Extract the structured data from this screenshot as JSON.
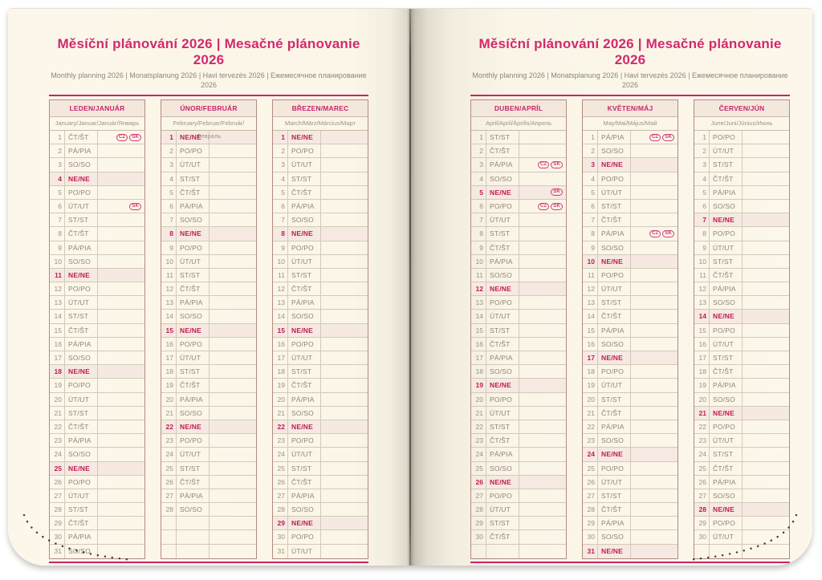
{
  "heading": {
    "title": "Měsíční plánování 2026 | Mesačné plánovanie 2026",
    "subtitle": "Monthly planning 2026 | Monatsplanung 2026 | Havi tervezés 2026 | Ежемесячное планирование 2026"
  },
  "colors": {
    "accent_pink": "#d12a6e",
    "rule_pink": "#c7256a",
    "sunday_red": "#bf1d50",
    "sunday_row_bg": "#f6e9e2",
    "month_header_bg": "#f4e8dc",
    "paper": "#fbf6e8",
    "grid_line": "#d2cab9",
    "table_border": "#b08c7f",
    "muted_text": "#8e8577"
  },
  "pages": [
    {
      "side": "left",
      "months": [
        0,
        1,
        2
      ]
    },
    {
      "side": "right",
      "months": [
        3,
        4,
        5
      ]
    }
  ],
  "months": [
    {
      "id": "leden-januar",
      "header": "LEDEN/JANUÁR",
      "subheader": "January/Januar/Január/Январь",
      "empty_rows": 0,
      "days": [
        {
          "n": 1,
          "day": "ČT/ŠT",
          "badges": [
            "CZ",
            "SK"
          ]
        },
        {
          "n": 2,
          "day": "PÁ/PIA"
        },
        {
          "n": 3,
          "day": "SO/SO"
        },
        {
          "n": 4,
          "day": "NE/NE",
          "sun": true
        },
        {
          "n": 5,
          "day": "PO/PO"
        },
        {
          "n": 6,
          "day": "ÚT/UT",
          "badges": [
            "SK"
          ]
        },
        {
          "n": 7,
          "day": "ST/ST"
        },
        {
          "n": 8,
          "day": "ČT/ŠT"
        },
        {
          "n": 9,
          "day": "PÁ/PIA"
        },
        {
          "n": 10,
          "day": "SO/SO"
        },
        {
          "n": 11,
          "day": "NE/NE",
          "sun": true
        },
        {
          "n": 12,
          "day": "PO/PO"
        },
        {
          "n": 13,
          "day": "ÚT/UT"
        },
        {
          "n": 14,
          "day": "ST/ST"
        },
        {
          "n": 15,
          "day": "ČT/ŠT"
        },
        {
          "n": 16,
          "day": "PÁ/PIA"
        },
        {
          "n": 17,
          "day": "SO/SO"
        },
        {
          "n": 18,
          "day": "NE/NE",
          "sun": true
        },
        {
          "n": 19,
          "day": "PO/PO"
        },
        {
          "n": 20,
          "day": "ÚT/UT"
        },
        {
          "n": 21,
          "day": "ST/ST"
        },
        {
          "n": 22,
          "day": "ČT/ŠT"
        },
        {
          "n": 23,
          "day": "PÁ/PIA"
        },
        {
          "n": 24,
          "day": "SO/SO"
        },
        {
          "n": 25,
          "day": "NE/NE",
          "sun": true
        },
        {
          "n": 26,
          "day": "PO/PO"
        },
        {
          "n": 27,
          "day": "ÚT/UT"
        },
        {
          "n": 28,
          "day": "ST/ST"
        },
        {
          "n": 29,
          "day": "ČT/ŠT"
        },
        {
          "n": 30,
          "day": "PÁ/PIA"
        },
        {
          "n": 31,
          "day": "SO/SO"
        }
      ]
    },
    {
      "id": "unor-februar",
      "header": "ÚNOR/FEBRUÁR",
      "subheader": "February/Februar/Február/Февраль",
      "empty_rows": 3,
      "days": [
        {
          "n": 1,
          "day": "NE/NE",
          "sun": true
        },
        {
          "n": 2,
          "day": "PO/PO"
        },
        {
          "n": 3,
          "day": "ÚT/UT"
        },
        {
          "n": 4,
          "day": "ST/ST"
        },
        {
          "n": 5,
          "day": "ČT/ŠT"
        },
        {
          "n": 6,
          "day": "PÁ/PIA"
        },
        {
          "n": 7,
          "day": "SO/SO"
        },
        {
          "n": 8,
          "day": "NE/NE",
          "sun": true
        },
        {
          "n": 9,
          "day": "PO/PO"
        },
        {
          "n": 10,
          "day": "ÚT/UT"
        },
        {
          "n": 11,
          "day": "ST/ST"
        },
        {
          "n": 12,
          "day": "ČT/ŠT"
        },
        {
          "n": 13,
          "day": "PÁ/PIA"
        },
        {
          "n": 14,
          "day": "SO/SO"
        },
        {
          "n": 15,
          "day": "NE/NE",
          "sun": true
        },
        {
          "n": 16,
          "day": "PO/PO"
        },
        {
          "n": 17,
          "day": "ÚT/UT"
        },
        {
          "n": 18,
          "day": "ST/ST"
        },
        {
          "n": 19,
          "day": "ČT/ŠT"
        },
        {
          "n": 20,
          "day": "PÁ/PIA"
        },
        {
          "n": 21,
          "day": "SO/SO"
        },
        {
          "n": 22,
          "day": "NE/NE",
          "sun": true
        },
        {
          "n": 23,
          "day": "PO/PO"
        },
        {
          "n": 24,
          "day": "ÚT/UT"
        },
        {
          "n": 25,
          "day": "ST/ST"
        },
        {
          "n": 26,
          "day": "ČT/ŠT"
        },
        {
          "n": 27,
          "day": "PÁ/PIA"
        },
        {
          "n": 28,
          "day": "SO/SO"
        }
      ]
    },
    {
      "id": "brezen-marec",
      "header": "BŘEZEN/MAREC",
      "subheader": "March/März/Március/Март",
      "empty_rows": 0,
      "days": [
        {
          "n": 1,
          "day": "NE/NE",
          "sun": true
        },
        {
          "n": 2,
          "day": "PO/PO"
        },
        {
          "n": 3,
          "day": "ÚT/UT"
        },
        {
          "n": 4,
          "day": "ST/ST"
        },
        {
          "n": 5,
          "day": "ČT/ŠT"
        },
        {
          "n": 6,
          "day": "PÁ/PIA"
        },
        {
          "n": 7,
          "day": "SO/SO"
        },
        {
          "n": 8,
          "day": "NE/NE",
          "sun": true
        },
        {
          "n": 9,
          "day": "PO/PO"
        },
        {
          "n": 10,
          "day": "ÚT/UT"
        },
        {
          "n": 11,
          "day": "ST/ST"
        },
        {
          "n": 12,
          "day": "ČT/ŠT"
        },
        {
          "n": 13,
          "day": "PÁ/PIA"
        },
        {
          "n": 14,
          "day": "SO/SO"
        },
        {
          "n": 15,
          "day": "NE/NE",
          "sun": true
        },
        {
          "n": 16,
          "day": "PO/PO"
        },
        {
          "n": 17,
          "day": "ÚT/UT"
        },
        {
          "n": 18,
          "day": "ST/ST"
        },
        {
          "n": 19,
          "day": "ČT/ŠT"
        },
        {
          "n": 20,
          "day": "PÁ/PIA"
        },
        {
          "n": 21,
          "day": "SO/SO"
        },
        {
          "n": 22,
          "day": "NE/NE",
          "sun": true
        },
        {
          "n": 23,
          "day": "PO/PO"
        },
        {
          "n": 24,
          "day": "ÚT/UT"
        },
        {
          "n": 25,
          "day": "ST/ST"
        },
        {
          "n": 26,
          "day": "ČT/ŠT"
        },
        {
          "n": 27,
          "day": "PÁ/PIA"
        },
        {
          "n": 28,
          "day": "SO/SO"
        },
        {
          "n": 29,
          "day": "NE/NE",
          "sun": true
        },
        {
          "n": 30,
          "day": "PO/PO"
        },
        {
          "n": 31,
          "day": "ÚT/UT"
        }
      ]
    },
    {
      "id": "duben-april",
      "header": "DUBEN/APRÍL",
      "subheader": "April/April/Április/Апрель",
      "empty_rows": 1,
      "days": [
        {
          "n": 1,
          "day": "ST/ST"
        },
        {
          "n": 2,
          "day": "ČT/ŠT"
        },
        {
          "n": 3,
          "day": "PÁ/PIA",
          "badges": [
            "CZ",
            "SK"
          ]
        },
        {
          "n": 4,
          "day": "SO/SO"
        },
        {
          "n": 5,
          "day": "NE/NE",
          "sun": true,
          "badges": [
            "SK"
          ]
        },
        {
          "n": 6,
          "day": "PO/PO",
          "badges": [
            "CZ",
            "SK"
          ]
        },
        {
          "n": 7,
          "day": "ÚT/UT"
        },
        {
          "n": 8,
          "day": "ST/ST"
        },
        {
          "n": 9,
          "day": "ČT/ŠT"
        },
        {
          "n": 10,
          "day": "PÁ/PIA"
        },
        {
          "n": 11,
          "day": "SO/SO"
        },
        {
          "n": 12,
          "day": "NE/NE",
          "sun": true
        },
        {
          "n": 13,
          "day": "PO/PO"
        },
        {
          "n": 14,
          "day": "ÚT/UT"
        },
        {
          "n": 15,
          "day": "ST/ST"
        },
        {
          "n": 16,
          "day": "ČT/ŠT"
        },
        {
          "n": 17,
          "day": "PÁ/PIA"
        },
        {
          "n": 18,
          "day": "SO/SO"
        },
        {
          "n": 19,
          "day": "NE/NE",
          "sun": true
        },
        {
          "n": 20,
          "day": "PO/PO"
        },
        {
          "n": 21,
          "day": "ÚT/UT"
        },
        {
          "n": 22,
          "day": "ST/ST"
        },
        {
          "n": 23,
          "day": "ČT/ŠT"
        },
        {
          "n": 24,
          "day": "PÁ/PIA"
        },
        {
          "n": 25,
          "day": "SO/SO"
        },
        {
          "n": 26,
          "day": "NE/NE",
          "sun": true
        },
        {
          "n": 27,
          "day": "PO/PO"
        },
        {
          "n": 28,
          "day": "ÚT/UT"
        },
        {
          "n": 29,
          "day": "ST/ST"
        },
        {
          "n": 30,
          "day": "ČT/ŠT"
        }
      ]
    },
    {
      "id": "kveten-maj",
      "header": "KVĚTEN/MÁJ",
      "subheader": "May/Mai/Május/Май",
      "empty_rows": 0,
      "days": [
        {
          "n": 1,
          "day": "PÁ/PIA",
          "badges": [
            "CZ",
            "SK"
          ]
        },
        {
          "n": 2,
          "day": "SO/SO"
        },
        {
          "n": 3,
          "day": "NE/NE",
          "sun": true
        },
        {
          "n": 4,
          "day": "PO/PO"
        },
        {
          "n": 5,
          "day": "ÚT/UT"
        },
        {
          "n": 6,
          "day": "ST/ST"
        },
        {
          "n": 7,
          "day": "ČT/ŠT"
        },
        {
          "n": 8,
          "day": "PÁ/PIA",
          "badges": [
            "CZ",
            "SK"
          ]
        },
        {
          "n": 9,
          "day": "SO/SO"
        },
        {
          "n": 10,
          "day": "NE/NE",
          "sun": true
        },
        {
          "n": 11,
          "day": "PO/PO"
        },
        {
          "n": 12,
          "day": "ÚT/UT"
        },
        {
          "n": 13,
          "day": "ST/ST"
        },
        {
          "n": 14,
          "day": "ČT/ŠT"
        },
        {
          "n": 15,
          "day": "PÁ/PIA"
        },
        {
          "n": 16,
          "day": "SO/SO"
        },
        {
          "n": 17,
          "day": "NE/NE",
          "sun": true
        },
        {
          "n": 18,
          "day": "PO/PO"
        },
        {
          "n": 19,
          "day": "ÚT/UT"
        },
        {
          "n": 20,
          "day": "ST/ST"
        },
        {
          "n": 21,
          "day": "ČT/ŠT"
        },
        {
          "n": 22,
          "day": "PÁ/PIA"
        },
        {
          "n": 23,
          "day": "SO/SO"
        },
        {
          "n": 24,
          "day": "NE/NE",
          "sun": true
        },
        {
          "n": 25,
          "day": "PO/PO"
        },
        {
          "n": 26,
          "day": "ÚT/UT"
        },
        {
          "n": 27,
          "day": "ST/ST"
        },
        {
          "n": 28,
          "day": "ČT/ŠT"
        },
        {
          "n": 29,
          "day": "PÁ/PIA"
        },
        {
          "n": 30,
          "day": "SO/SO"
        },
        {
          "n": 31,
          "day": "NE/NE",
          "sun": true
        }
      ]
    },
    {
      "id": "cerven-jun",
      "header": "ČERVEN/JÚN",
      "subheader": "June/Juni/Június/Июнь",
      "empty_rows": 1,
      "days": [
        {
          "n": 1,
          "day": "PO/PO"
        },
        {
          "n": 2,
          "day": "ÚT/UT"
        },
        {
          "n": 3,
          "day": "ST/ST"
        },
        {
          "n": 4,
          "day": "ČT/ŠT"
        },
        {
          "n": 5,
          "day": "PÁ/PIA"
        },
        {
          "n": 6,
          "day": "SO/SO"
        },
        {
          "n": 7,
          "day": "NE/NE",
          "sun": true
        },
        {
          "n": 8,
          "day": "PO/PO"
        },
        {
          "n": 9,
          "day": "ÚT/UT"
        },
        {
          "n": 10,
          "day": "ST/ST"
        },
        {
          "n": 11,
          "day": "ČT/ŠT"
        },
        {
          "n": 12,
          "day": "PÁ/PIA"
        },
        {
          "n": 13,
          "day": "SO/SO"
        },
        {
          "n": 14,
          "day": "NE/NE",
          "sun": true
        },
        {
          "n": 15,
          "day": "PO/PO"
        },
        {
          "n": 16,
          "day": "ÚT/UT"
        },
        {
          "n": 17,
          "day": "ST/ST"
        },
        {
          "n": 18,
          "day": "ČT/ŠT"
        },
        {
          "n": 19,
          "day": "PÁ/PIA"
        },
        {
          "n": 20,
          "day": "SO/SO"
        },
        {
          "n": 21,
          "day": "NE/NE",
          "sun": true
        },
        {
          "n": 22,
          "day": "PO/PO"
        },
        {
          "n": 23,
          "day": "ÚT/UT"
        },
        {
          "n": 24,
          "day": "ST/ST"
        },
        {
          "n": 25,
          "day": "ČT/ŠT"
        },
        {
          "n": 26,
          "day": "PÁ/PIA"
        },
        {
          "n": 27,
          "day": "SO/SO"
        },
        {
          "n": 28,
          "day": "NE/NE",
          "sun": true
        },
        {
          "n": 29,
          "day": "PO/PO"
        },
        {
          "n": 30,
          "day": "ÚT/UT"
        }
      ]
    }
  ]
}
